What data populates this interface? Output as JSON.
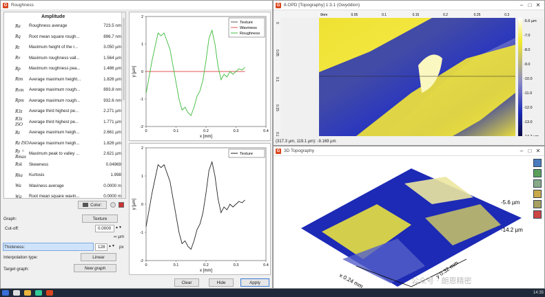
{
  "roughness_window": {
    "title": "Roughness",
    "section_header": "Amplitude",
    "params": [
      {
        "sym": "Ra",
        "name": "Roughness average",
        "value": "723.5 nm"
      },
      {
        "sym": "Rq",
        "name": "Root mean square rough...",
        "value": "896.7 nm"
      },
      {
        "sym": "Rt",
        "name": "Maximum height of the r...",
        "value": "3.050 µm"
      },
      {
        "sym": "Rv",
        "name": "Maximum roughness vall...",
        "value": "1.564 µm"
      },
      {
        "sym": "Rp",
        "name": "Maximum roughness pea...",
        "value": "1.486 µm"
      },
      {
        "sym": "Rtm",
        "name": "Average maximum height...",
        "value": "1.826 µm"
      },
      {
        "sym": "Rvm",
        "name": "Average maximum rough...",
        "value": "893.8 nm"
      },
      {
        "sym": "Rpm",
        "name": "Average maximum rough...",
        "value": "932.6 nm"
      },
      {
        "sym": "R3z",
        "name": "Average third highest pe...",
        "value": "2.271 µm"
      },
      {
        "sym": "R3z ISO",
        "name": "Average third highest pe...",
        "value": "1.771 µm"
      },
      {
        "sym": "Rz",
        "name": "Average maximum heigh...",
        "value": "2.661 µm"
      },
      {
        "sym": "Rz ISO",
        "name": "Average maximum heigh...",
        "value": "1.826 µm"
      },
      {
        "sym": "Ry = Rmax",
        "name": "Maximum peak to valley ...",
        "value": "2.621 µm"
      },
      {
        "sym": "Rsk",
        "name": "Skewness",
        "value": "0.04969"
      },
      {
        "sym": "Rku",
        "name": "Kurtosis",
        "value": "1.998"
      },
      {
        "sym": "Wa",
        "name": "Waviness average",
        "value": "0.0000 m"
      },
      {
        "sym": "Wq",
        "name": "Root mean square wavin...",
        "value": "0.0000 m"
      }
    ],
    "color_button": "Color:",
    "graph_label": "Graph:",
    "graph_value": "Texture",
    "cutoff_label": "Cut-off:",
    "cutoff_value": "0.0000",
    "cutoff_unit": "∞ µm",
    "thickness_label": "Thickness:",
    "thickness_value": "128",
    "thickness_unit": "px",
    "interp_label": "Interpolation type:",
    "interp_value": "Linear",
    "target_label": "Target graph:",
    "target_value": "New graph",
    "clear": "Clear",
    "hide": "Hide",
    "apply": "Apply"
  },
  "topography_window": {
    "title": "8.OPD [Topography] 1:3.1 (Gwyddion)",
    "status": "(317.3 µm, 119.1 µm): -9.169 µm",
    "x_unit": "mm",
    "x_ticks": [
      "0",
      "0.05",
      "0.1",
      "0.15",
      "0.2",
      "0.25",
      "0.3"
    ],
    "y_ticks": [
      "0",
      "0.05",
      "0.1",
      "0.15",
      "0.2"
    ],
    "scale_ticks": [
      "-5.6 µm",
      "-7.0",
      "-8.0",
      "-9.0",
      "-10.0",
      "-11.0",
      "-12.0",
      "-13.0",
      "-14.2 µm"
    ]
  },
  "td_window": {
    "title": "3D Topography",
    "z_top": "-5.6 µm",
    "z_bottom": "-14.2 µm",
    "x_axis": "x 0.24 mm",
    "y_axis": "y 0.32 mm",
    "watermark": "公众号 · 朗恩精密"
  },
  "taskbar": {
    "time": "14:35"
  },
  "colors": {
    "yellow": "#f0e62a",
    "blue": "#1a2ab8",
    "green": "#3cbb3c",
    "red": "#e05050",
    "white": "#ffffff"
  },
  "chart_data": [
    {
      "type": "line",
      "title": "",
      "xlabel": "x [mm]",
      "ylabel": "y [µm]",
      "xlim": [
        0,
        0.4
      ],
      "ylim": [
        -2,
        2
      ],
      "legend": "top-right",
      "series": [
        {
          "name": "Texture",
          "color": "#555555",
          "x": [],
          "y": []
        },
        {
          "name": "Waviness",
          "color": "#e05050",
          "x": [
            0,
            0.33
          ],
          "y": [
            0,
            0
          ]
        },
        {
          "name": "Roughness",
          "color": "#3cbb3c",
          "x": [
            0,
            0.01,
            0.02,
            0.03,
            0.04,
            0.05,
            0.06,
            0.07,
            0.08,
            0.09,
            0.1,
            0.11,
            0.12,
            0.13,
            0.14,
            0.15,
            0.16,
            0.17,
            0.18,
            0.19,
            0.2,
            0.21,
            0.22,
            0.23,
            0.24,
            0.25,
            0.26,
            0.27,
            0.28,
            0.29,
            0.3,
            0.31,
            0.32,
            0.33
          ],
          "y": [
            -0.8,
            -0.2,
            0.4,
            0.9,
            1.4,
            1.3,
            1.4,
            1.1,
            0.8,
            0.2,
            -0.4,
            -1.0,
            -1.4,
            -1.3,
            -1.5,
            -1.6,
            -1.3,
            -0.9,
            -0.7,
            -0.3,
            0.4,
            1.2,
            1.5,
            1.0,
            0.2,
            -0.3,
            -0.1,
            -0.2,
            0.0,
            -0.1,
            0.0,
            0.1,
            0.05,
            0.15
          ]
        }
      ]
    },
    {
      "type": "line",
      "title": "",
      "xlabel": "x [mm]",
      "ylabel": "y [µm]",
      "xlim": [
        0,
        0.4
      ],
      "ylim": [
        -2,
        2
      ],
      "legend": "top-right",
      "series": [
        {
          "name": "Texture",
          "color": "#222222",
          "x": [
            0,
            0.01,
            0.02,
            0.03,
            0.04,
            0.05,
            0.06,
            0.07,
            0.08,
            0.09,
            0.1,
            0.11,
            0.12,
            0.13,
            0.14,
            0.15,
            0.16,
            0.17,
            0.18,
            0.19,
            0.2,
            0.21,
            0.22,
            0.23,
            0.24,
            0.25,
            0.26,
            0.27,
            0.28,
            0.29,
            0.3,
            0.31,
            0.32,
            0.33
          ],
          "y": [
            -0.8,
            -0.2,
            0.4,
            0.9,
            1.4,
            1.3,
            1.4,
            1.1,
            0.8,
            0.2,
            -0.4,
            -1.0,
            -1.4,
            -1.3,
            -1.5,
            -1.6,
            -1.3,
            -0.9,
            -0.7,
            -0.3,
            0.4,
            1.2,
            1.5,
            1.0,
            0.2,
            -0.3,
            -0.1,
            -0.2,
            0.0,
            -0.1,
            0.0,
            0.1,
            0.05,
            0.15
          ]
        }
      ]
    }
  ]
}
